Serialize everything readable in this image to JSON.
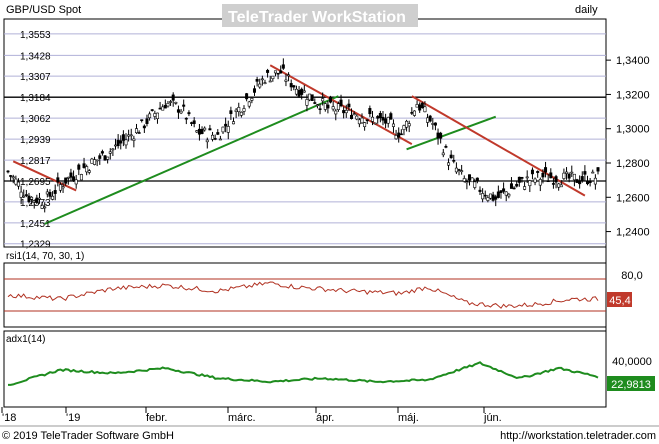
{
  "header": {
    "title": "GBP/USD Spot",
    "watermark_left": "TeleTrader",
    "watermark_right": "WorkStation",
    "period": "daily"
  },
  "footer": {
    "copyright": "© 2019 TeleTrader Software GmbH",
    "url": "http://workstation.teletrader.com"
  },
  "colors": {
    "price": "#000000",
    "uptrend": "#1e8c1e",
    "downtrend": "#c0392b",
    "rsi": "#b03020",
    "adx": "#1e8c1e",
    "grid": "#b0b0d8",
    "label_box": "#c0392b"
  },
  "chart_data": [
    {
      "type": "candlestick",
      "name": "price",
      "title": "GBP/USD Spot",
      "ylim": [
        1.231,
        1.364
      ],
      "left_ticks": [
        "1,3553",
        "1,3428",
        "1,3307",
        "1,3184",
        "1,3062",
        "1,2939",
        "1,2817",
        "1,2695",
        "1,2573",
        "1,2451",
        "1,2329"
      ],
      "right_ticks": [
        "1,3400",
        "1,3200",
        "1,3000",
        "1,2800",
        "1,2600",
        "1,2400"
      ],
      "x_ticks": [
        "'18",
        "'19",
        "febr.",
        "márc.",
        "ápr.",
        "máj.",
        "jún."
      ],
      "support_lines": [
        1.3184,
        1.2695
      ],
      "trendlines": [
        {
          "style": "up",
          "from": [
            14,
            1.2445
          ],
          "to": [
            126,
            1.319
          ]
        },
        {
          "style": "up",
          "from": [
            152,
            1.288
          ],
          "to": [
            186,
            1.307
          ]
        },
        {
          "style": "down",
          "from": [
            2,
            1.281
          ],
          "to": [
            26,
            1.264
          ]
        },
        {
          "style": "down",
          "from": [
            100,
            1.337
          ],
          "to": [
            154,
            1.291
          ]
        },
        {
          "style": "down",
          "from": [
            154,
            1.319
          ],
          "to": [
            220,
            1.261
          ]
        }
      ]
    },
    {
      "type": "line",
      "name": "rsi",
      "label": "rsi1(14, 70, 30, 1)",
      "ylim": [
        10,
        90
      ],
      "ticks": [
        "80,0"
      ],
      "levels": [
        70,
        30
      ],
      "last_value": "45,4"
    },
    {
      "type": "line",
      "name": "adx",
      "label": "adx1(14)",
      "ylim": [
        5,
        50
      ],
      "ticks": [
        "40,0000"
      ],
      "last_value": "22,9813"
    }
  ]
}
